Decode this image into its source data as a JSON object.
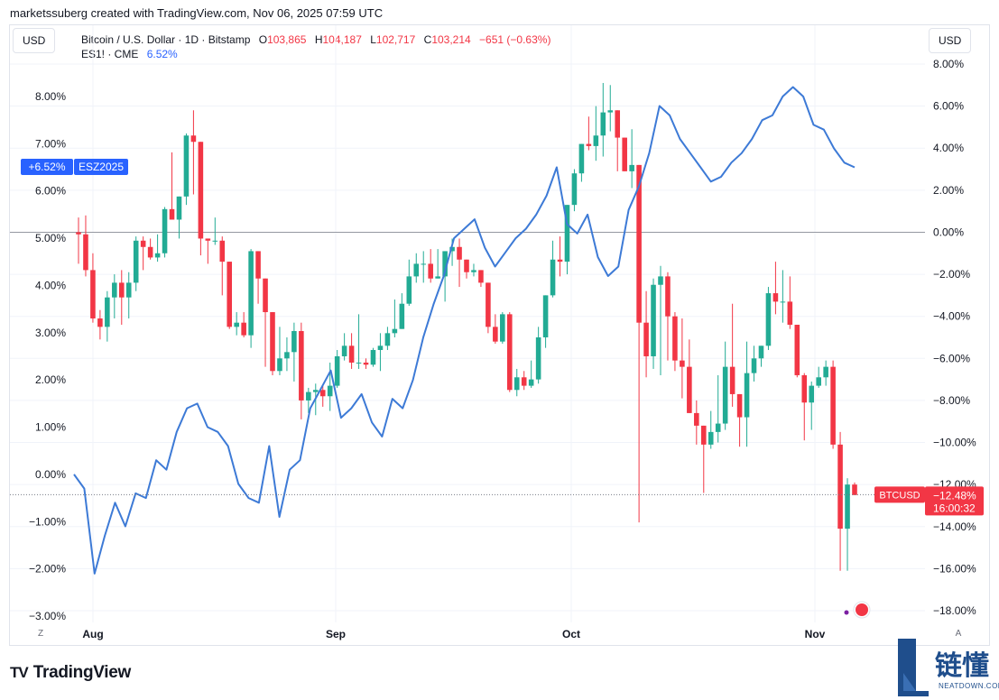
{
  "caption": "marketssuberg created with TradingView.com, Nov 06, 2025 07:59 UTC",
  "currency_left": "USD",
  "currency_right": "USD",
  "legend": {
    "symbol": "Bitcoin / U.S. Dollar · 1D · Bitstamp",
    "o_label": "O",
    "o_value": "103,865",
    "h_label": "H",
    "h_value": "104,187",
    "l_label": "L",
    "l_value": "102,717",
    "c_label": "C",
    "c_value": "103,214",
    "change": "−651 (−0.63%)",
    "compare_symbol": "ES1! · CME",
    "compare_value": "6.52%"
  },
  "brand": {
    "name": "TradingView",
    "logo": "TV"
  },
  "watermark": {
    "text": "链懂",
    "sub": "NEATDOWN.COM"
  },
  "scale_buttons": {
    "left": "Z",
    "right": "A"
  },
  "colors": {
    "up": "#22ab94",
    "down": "#f23645",
    "line": "#3d7ad6",
    "badge_blue": "#2962ff",
    "grid": "#f0f3fa"
  },
  "chart_data": {
    "type": "candlestick",
    "x_tick_labels": [
      {
        "label": "Aug",
        "date": "2025-08-01"
      },
      {
        "label": "Sep",
        "date": "2025-09-01"
      },
      {
        "label": "Oct",
        "date": "2025-10-01"
      },
      {
        "label": "Nov",
        "date": "2025-11-01"
      }
    ],
    "left_axis": {
      "unit": "%",
      "ticks": [
        "8.00%",
        "7.00%",
        "6.00%",
        "5.00%",
        "4.00%",
        "3.00%",
        "2.00%",
        "1.00%",
        "0.00%",
        "−1.00%",
        "−2.00%",
        "−3.00%"
      ],
      "range": [
        -3.1,
        8.6
      ]
    },
    "right_axis": {
      "unit": "%",
      "ticks": [
        "8.00%",
        "6.00%",
        "4.00%",
        "2.00%",
        "0.00%",
        "−2.00%",
        "−4.00%",
        "−6.00%",
        "−8.00%",
        "−10.00%",
        "−12.00%",
        "−14.00%",
        "−16.00%",
        "−18.00%"
      ],
      "range": [
        -18.2,
        8.5
      ]
    },
    "series": [
      {
        "name": "BTCUSD",
        "axis": "right",
        "value_label": "−12.48%",
        "countdown": "16:00:32",
        "ohlc_pct": [
          [
            0.0,
            0.7,
            -1.5,
            -0.1
          ],
          [
            -0.1,
            0.8,
            -2.1,
            -1.8
          ],
          [
            -1.8,
            -1.0,
            -4.3,
            -4.1
          ],
          [
            -4.1,
            -3.7,
            -5.1,
            -4.5
          ],
          [
            -4.5,
            -2.8,
            -5.2,
            -3.1
          ],
          [
            -3.1,
            -2.0,
            -4.1,
            -2.4
          ],
          [
            -2.4,
            -1.8,
            -4.4,
            -3.1
          ],
          [
            -3.1,
            -1.9,
            -4.1,
            -2.4
          ],
          [
            -2.4,
            -0.2,
            -2.8,
            -0.4
          ],
          [
            -0.4,
            -0.2,
            -1.8,
            -0.7
          ],
          [
            -0.7,
            -0.3,
            -1.3,
            -1.2
          ],
          [
            -1.2,
            -0.1,
            -1.4,
            -1.0
          ],
          [
            -1.0,
            1.2,
            -1.2,
            1.1
          ],
          [
            1.1,
            3.8,
            0.6,
            0.6
          ],
          [
            0.6,
            1.6,
            -0.3,
            1.7
          ],
          [
            1.7,
            4.7,
            1.3,
            4.6
          ],
          [
            4.6,
            5.8,
            1.8,
            4.3
          ],
          [
            4.3,
            -0.6,
            -1.1,
            -0.3
          ],
          [
            -0.3,
            -0.4,
            -1.5,
            -0.4
          ],
          [
            -0.4,
            0.7,
            -0.6,
            -0.4
          ],
          [
            -0.4,
            -0.2,
            -3.0,
            -1.4
          ],
          [
            -1.4,
            -1.6,
            -4.6,
            -4.5
          ],
          [
            -4.5,
            -3.8,
            -4.9,
            -4.3
          ],
          [
            -4.3,
            -3.8,
            -5.0,
            -4.9
          ],
          [
            -4.9,
            -0.8,
            -5.5,
            -0.9
          ],
          [
            -0.9,
            -1.9,
            -3.4,
            -2.2
          ],
          [
            -2.2,
            -3.3,
            -6.4,
            -3.8
          ],
          [
            -3.8,
            -3.8,
            -6.8,
            -6.6
          ],
          [
            -6.6,
            -4.5,
            -6.8,
            -6.0
          ],
          [
            -6.0,
            -5.0,
            -6.6,
            -5.7
          ],
          [
            -5.7,
            -4.3,
            -7.1,
            -4.7
          ],
          [
            -4.7,
            -4.3,
            -8.9,
            -8.0
          ],
          [
            -8.0,
            -7.4,
            -8.6,
            -7.6
          ],
          [
            -7.6,
            -7.2,
            -8.7,
            -7.5
          ],
          [
            -7.5,
            -7.3,
            -8.3,
            -7.8
          ],
          [
            -7.8,
            -6.2,
            -8.5,
            -7.3
          ],
          [
            -7.3,
            -5.6,
            -7.4,
            -5.9
          ],
          [
            -5.9,
            -4.8,
            -6.1,
            -5.4
          ],
          [
            -5.4,
            -4.8,
            -6.5,
            -6.2
          ],
          [
            -6.2,
            -3.9,
            -6.5,
            -6.2
          ],
          [
            -6.2,
            -6.0,
            -6.5,
            -6.3
          ],
          [
            -6.3,
            -5.5,
            -6.4,
            -5.6
          ],
          [
            -5.6,
            -4.8,
            -6.6,
            -5.4
          ],
          [
            -5.4,
            -4.5,
            -5.6,
            -4.8
          ],
          [
            -4.8,
            -3.2,
            -5.0,
            -4.6
          ],
          [
            -4.6,
            -2.9,
            -4.5,
            -3.4
          ],
          [
            -3.4,
            -1.3,
            -3.5,
            -2.1
          ],
          [
            -2.1,
            -1.0,
            -2.4,
            -1.5
          ],
          [
            -1.5,
            -0.9,
            -2.4,
            -1.5
          ],
          [
            -1.5,
            -0.8,
            -2.4,
            -2.2
          ],
          [
            -2.2,
            -0.8,
            -2.1,
            -2.1
          ],
          [
            -2.1,
            -0.9,
            -3.3,
            -0.9
          ],
          [
            -0.9,
            -0.3,
            -1.6,
            -0.7
          ],
          [
            -0.7,
            -0.3,
            -2.6,
            -1.3
          ],
          [
            -1.3,
            -1.3,
            -2.2,
            -1.9
          ],
          [
            -1.9,
            -1.5,
            -2.1,
            -1.8
          ],
          [
            -1.8,
            -2.1,
            -2.6,
            -2.4
          ],
          [
            -2.4,
            -2.6,
            -4.8,
            -4.5
          ],
          [
            -4.5,
            -3.9,
            -5.3,
            -5.2
          ],
          [
            -5.2,
            -3.8,
            -5.3,
            -3.9
          ],
          [
            -3.9,
            -3.8,
            -7.6,
            -7.5
          ],
          [
            -7.5,
            -6.5,
            -7.8,
            -6.9
          ],
          [
            -6.9,
            -6.6,
            -7.5,
            -7.3
          ],
          [
            -7.3,
            -6.1,
            -7.4,
            -7.0
          ],
          [
            -7.0,
            -4.5,
            -7.2,
            -5.0
          ],
          [
            -5.0,
            -4.3,
            -5.5,
            -3.0
          ],
          [
            -3.0,
            -0.4,
            -3.1,
            -1.3
          ],
          [
            -1.3,
            -0.2,
            -2.1,
            -1.4
          ],
          [
            -1.4,
            1.1,
            -2.0,
            1.3
          ],
          [
            1.3,
            3.0,
            1.0,
            2.8
          ],
          [
            2.8,
            4.2,
            2.4,
            4.2
          ],
          [
            4.2,
            5.5,
            3.9,
            4.1
          ],
          [
            4.1,
            6.0,
            3.4,
            4.6
          ],
          [
            4.6,
            7.1,
            3.6,
            5.7
          ],
          [
            5.7,
            7.0,
            4.8,
            5.8
          ],
          [
            5.8,
            5.8,
            2.9,
            4.5
          ],
          [
            4.5,
            4.0,
            3.3,
            2.9
          ],
          [
            2.9,
            4.9,
            2.1,
            3.2
          ],
          [
            3.2,
            2.8,
            -13.8,
            -4.3
          ],
          [
            -4.3,
            -2.8,
            -6.9,
            -5.9
          ],
          [
            -5.9,
            -2.2,
            -6.5,
            -2.5
          ],
          [
            -2.5,
            -1.6,
            -6.8,
            -2.1
          ],
          [
            -2.1,
            -1.9,
            -6.1,
            -4.0
          ],
          [
            -4.0,
            -3.8,
            -6.6,
            -6.1
          ],
          [
            -6.1,
            -4.1,
            -7.9,
            -6.4
          ],
          [
            -6.4,
            -5.1,
            -8.3,
            -8.6
          ],
          [
            -8.6,
            -8.0,
            -10.1,
            -9.2
          ],
          [
            -9.2,
            -9.5,
            -12.4,
            -10.1
          ],
          [
            -10.1,
            -8.5,
            -10.3,
            -9.5
          ],
          [
            -9.5,
            -6.8,
            -10.0,
            -9.1
          ],
          [
            -9.1,
            -5.2,
            -9.4,
            -6.4
          ],
          [
            -6.4,
            -3.4,
            -8.3,
            -7.7
          ],
          [
            -7.7,
            -8.0,
            -10.2,
            -8.8
          ],
          [
            -8.8,
            -5.2,
            -10.2,
            -6.7
          ],
          [
            -6.7,
            -5.4,
            -7.1,
            -6.0
          ],
          [
            -6.0,
            -5.5,
            -6.4,
            -5.4
          ],
          [
            -5.4,
            -2.6,
            -5.6,
            -2.9
          ],
          [
            -2.9,
            -1.4,
            -3.9,
            -3.3
          ],
          [
            -3.3,
            -1.8,
            -4.3,
            -3.3
          ],
          [
            -3.3,
            -2.1,
            -4.6,
            -4.4
          ],
          [
            -4.4,
            -4.4,
            -6.9,
            -6.8
          ],
          [
            -6.8,
            -6.7,
            -9.9,
            -8.1
          ],
          [
            -8.1,
            -7.1,
            -9.4,
            -7.3
          ],
          [
            -7.3,
            -6.4,
            -7.4,
            -6.9
          ],
          [
            -6.9,
            -6.1,
            -7.3,
            -6.4
          ],
          [
            -6.4,
            -6.1,
            -10.3,
            -10.1
          ],
          [
            -10.1,
            -9.5,
            -16.1,
            -14.1
          ],
          [
            -14.1,
            -11.7,
            -16.1,
            -12.0
          ],
          [
            -12.0,
            -11.9,
            -12.5,
            -12.5
          ]
        ]
      },
      {
        "name": "ESZ2025",
        "axis": "left",
        "value_label": "+6.52%",
        "values_pct": [
          0.0,
          -0.3,
          -2.1,
          -1.3,
          -0.6,
          -1.1,
          -0.4,
          -0.5,
          0.3,
          0.1,
          0.9,
          1.4,
          1.5,
          1.0,
          0.9,
          0.6,
          -0.2,
          -0.5,
          -0.6,
          0.6,
          -0.9,
          0.1,
          0.3,
          1.4,
          1.8,
          2.2,
          1.2,
          1.4,
          1.7,
          1.1,
          0.8,
          1.6,
          1.4,
          2.0,
          2.9,
          3.6,
          4.2,
          5.0,
          5.2,
          5.4,
          4.8,
          4.4,
          4.7,
          5.0,
          5.2,
          5.5,
          5.9,
          6.5,
          5.3,
          5.1,
          5.5,
          4.6,
          4.2,
          4.4,
          5.6,
          6.1,
          6.8,
          7.8,
          7.6,
          7.1,
          6.8,
          6.5,
          6.2,
          6.3,
          6.6,
          6.8,
          7.1,
          7.5,
          7.6,
          8.0,
          8.2,
          8.0,
          7.4,
          7.3,
          6.9,
          6.6,
          6.5
        ],
        "note": "approximate line read from the chart"
      }
    ],
    "reference_line": "0.00% baseline on right axis",
    "grid": true
  }
}
